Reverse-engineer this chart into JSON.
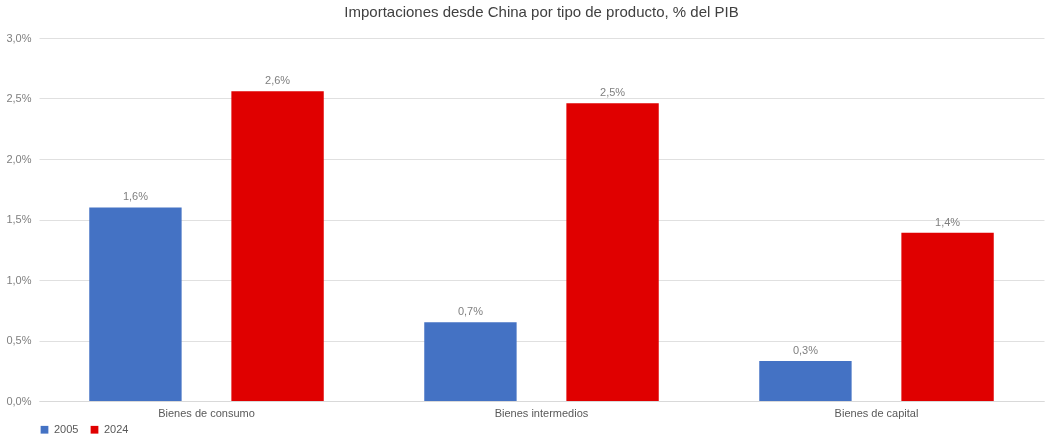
{
  "chart_data": {
    "type": "bar",
    "title": "Importaciones desde China por tipo de producto, % del PIB",
    "categories": [
      "Bienes de consumo",
      "Bienes intermedios",
      "Bienes de capital"
    ],
    "series": [
      {
        "name": "2005",
        "color": "#4472c4",
        "values": [
          1.6,
          0.65,
          0.33
        ],
        "value_labels": [
          "1,6%",
          "0,7%",
          "0,3%"
        ]
      },
      {
        "name": "2024",
        "color": "#e00000",
        "values": [
          2.56,
          2.46,
          1.39
        ],
        "value_labels": [
          "2,6%",
          "2,5%",
          "1,4%"
        ]
      }
    ],
    "ylim": [
      0,
      3.0
    ],
    "yticks": [
      {
        "value": 0,
        "label": "0,0%"
      },
      {
        "value": 0.5,
        "label": "0,5%"
      },
      {
        "value": 1.0,
        "label": "1,0%"
      },
      {
        "value": 1.5,
        "label": "1,5%"
      },
      {
        "value": 2.0,
        "label": "2,0%"
      },
      {
        "value": 2.5,
        "label": "2,5%"
      },
      {
        "value": 3.0,
        "label": "3,0%"
      }
    ],
    "grid": "y",
    "legend": "bottom"
  }
}
